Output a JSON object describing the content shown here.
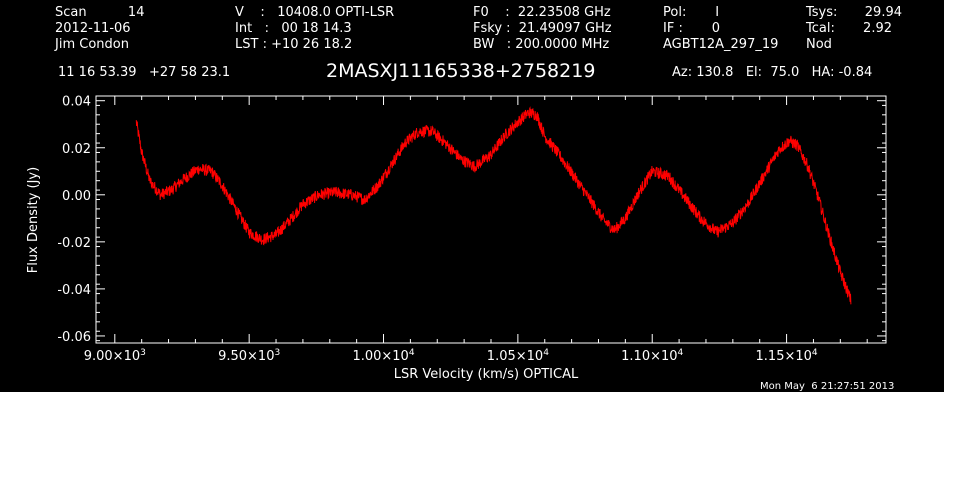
{
  "header": {
    "col1": [
      "Scan          14",
      "2012-11-06",
      "Jim Condon"
    ],
    "col2": [
      "V    :   10408.0 OPTI-LSR",
      "Int   :   00 18 14.3",
      "LST : +10 26 18.2"
    ],
    "col3": [
      "F0    :  22.23508 GHz",
      "Fsky :  21.49097 GHz",
      "BW   : 200.0000 MHz"
    ],
    "col4": [
      "Pol:       I",
      "IF :       0",
      "AGBT12A_297_19"
    ],
    "col5a": [
      "Tsys:",
      "Tcal:",
      "Nod"
    ],
    "col5b": [
      "29.94",
      "2.92",
      ""
    ],
    "coords": "11 16 53.39   +27 58 23.1",
    "source": "2MASXJ11165338+2758219",
    "pointing": "Az: 130.8   El:  75.0   HA: -0.84",
    "timestamp": "Mon May  6 21:27:51 2013"
  },
  "colors": {
    "background": "#000000",
    "axes": "#ffffff",
    "series": "#ff0000"
  },
  "chart_data": {
    "type": "line",
    "xlabel": "LSR Velocity (km/s) OPTICAL",
    "ylabel": "Flux Density (Jy)",
    "xlim": [
      8930,
      11870
    ],
    "ylim": [
      -0.063,
      0.042
    ],
    "x_ticks": [
      {
        "value": 9000,
        "mantissa": "9.00×10",
        "exp": "3"
      },
      {
        "value": 9500,
        "mantissa": "9.50×10",
        "exp": "3"
      },
      {
        "value": 10000,
        "mantissa": "1.00×10",
        "exp": "4"
      },
      {
        "value": 10500,
        "mantissa": "1.05×10",
        "exp": "4"
      },
      {
        "value": 11000,
        "mantissa": "1.10×10",
        "exp": "4"
      },
      {
        "value": 11500,
        "mantissa": "1.15×10",
        "exp": "4"
      }
    ],
    "y_ticks": [
      {
        "value": 0.04,
        "label": "0.04"
      },
      {
        "value": 0.02,
        "label": "0.02"
      },
      {
        "value": 0.0,
        "label": "0.00"
      },
      {
        "value": -0.02,
        "label": "-0.02"
      },
      {
        "value": -0.04,
        "label": "-0.04"
      },
      {
        "value": -0.06,
        "label": "-0.06"
      }
    ],
    "noise_amplitude": 0.0025,
    "series": [
      {
        "x": [
          9080,
          9100,
          9130,
          9170,
          9210,
          9260,
          9310,
          9360,
          9400,
          9450,
          9500,
          9550,
          9600,
          9650,
          9700,
          9760,
          9820,
          9880,
          9930,
          9980,
          10030,
          10080,
          10130,
          10180,
          10230,
          10290,
          10340,
          10400,
          10450,
          10500,
          10540,
          10570,
          10600,
          10660,
          10720,
          10780,
          10820,
          10860,
          10900,
          10950,
          11000,
          11060,
          11120,
          11180,
          11240,
          11300,
          11360,
          11420,
          11470,
          11510,
          11540,
          11580,
          11620,
          11660,
          11700,
          11740
        ],
        "y": [
          0.031,
          0.018,
          0.006,
          0.0,
          0.002,
          0.007,
          0.011,
          0.01,
          0.004,
          -0.006,
          -0.016,
          -0.019,
          -0.017,
          -0.011,
          -0.004,
          0.0,
          0.001,
          0.0,
          -0.002,
          0.004,
          0.013,
          0.022,
          0.027,
          0.027,
          0.022,
          0.015,
          0.012,
          0.017,
          0.025,
          0.031,
          0.035,
          0.034,
          0.025,
          0.016,
          0.006,
          -0.004,
          -0.011,
          -0.015,
          -0.01,
          0.001,
          0.01,
          0.008,
          -0.001,
          -0.01,
          -0.016,
          -0.012,
          -0.003,
          0.009,
          0.019,
          0.023,
          0.021,
          0.012,
          -0.002,
          -0.018,
          -0.033,
          -0.045
        ]
      }
    ]
  }
}
